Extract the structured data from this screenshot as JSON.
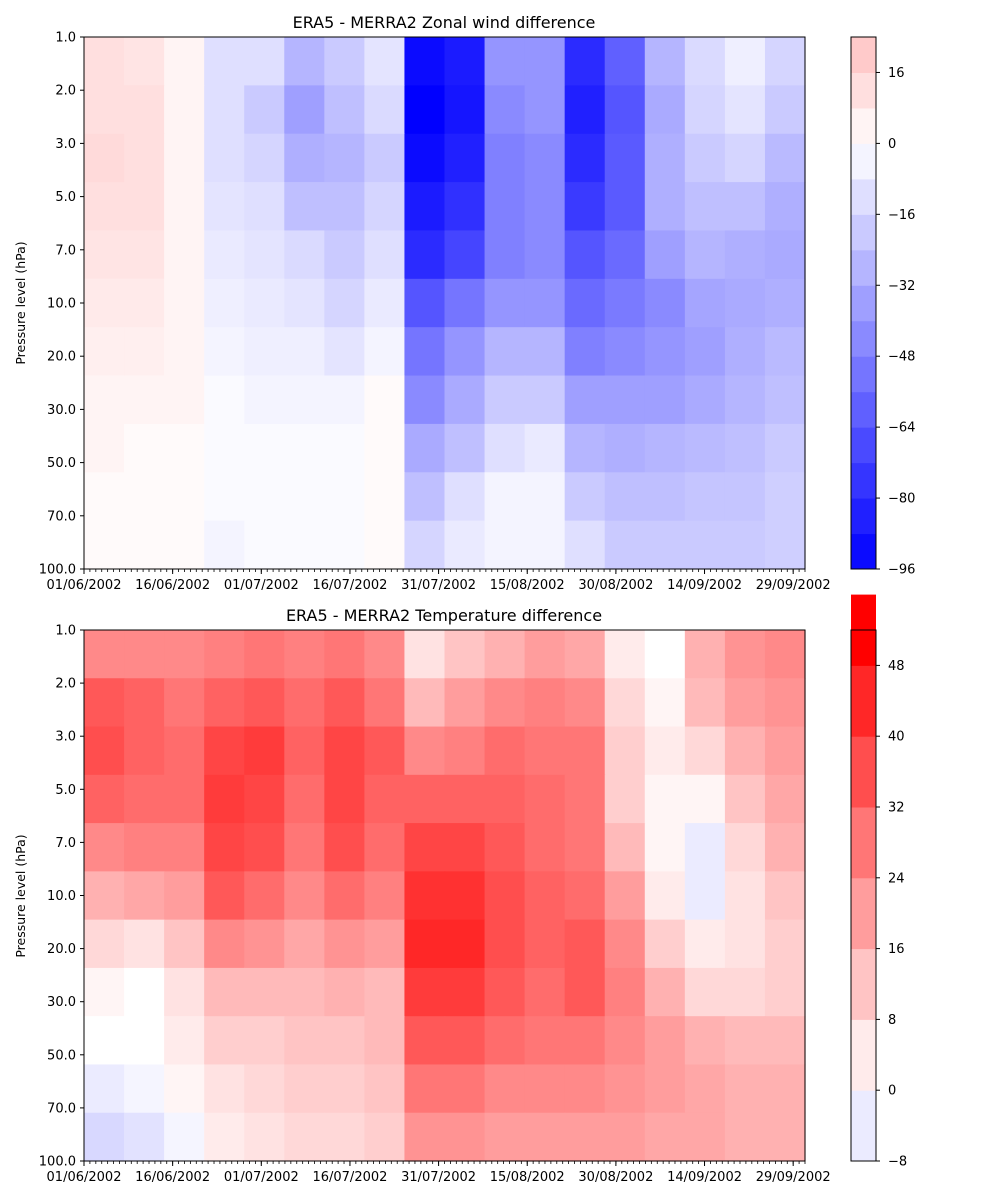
{
  "chart_data": [
    {
      "type": "heatmap",
      "title": "ERA5 - MERRA2 Zonal wind difference",
      "xlabel": "",
      "ylabel": "Pressure level (hPa)",
      "x_tick_labels": [
        "01/06/2002",
        "16/06/2002",
        "01/07/2002",
        "16/07/2002",
        "31/07/2002",
        "15/08/2002",
        "30/08/2002",
        "14/09/2002",
        "29/09/2002"
      ],
      "y_tick_labels": [
        "1.0",
        "2.0",
        "3.0",
        "5.0",
        "7.0",
        "10.0",
        "20.0",
        "30.0",
        "50.0",
        "70.0",
        "100.0"
      ],
      "x_range": [
        "01/06/2002",
        "01/10/2002"
      ],
      "y_range": [
        1.0,
        100.0
      ],
      "color_range": [
        -96,
        24
      ],
      "colorbar_ticks": [
        "16",
        "0",
        "−16",
        "−32",
        "−48",
        "−64",
        "−80",
        "−96"
      ],
      "colorbar_tick_values": [
        16,
        0,
        -16,
        -32,
        -48,
        -64,
        -80,
        -96
      ],
      "colormap": "bwr",
      "color_neg": "#0000ff",
      "color_pos": "#ff0000",
      "grid": false,
      "time_columns": [
        "01/06",
        "08/06",
        "15/06",
        "22/06",
        "29/06",
        "06/07",
        "13/07",
        "20/07",
        "27/07",
        "03/08",
        "10/08",
        "17/08",
        "24/08",
        "31/08",
        "07/09",
        "14/09",
        "21/09",
        "28/09"
      ],
      "pressure_rows": [
        1.0,
        2.0,
        3.0,
        5.0,
        7.0,
        10.0,
        20.0,
        30.0,
        50.0,
        70.0,
        100.0
      ],
      "values": [
        [
          12,
          10,
          4,
          -12,
          -12,
          -28,
          -20,
          -10,
          -92,
          -86,
          -40,
          -40,
          -80,
          -60,
          -28,
          -14,
          -6,
          -16
        ],
        [
          12,
          12,
          4,
          -12,
          -20,
          -36,
          -24,
          -14,
          -96,
          -88,
          -44,
          -40,
          -84,
          -64,
          -32,
          -16,
          -10,
          -20
        ],
        [
          14,
          12,
          4,
          -12,
          -16,
          -30,
          -28,
          -20,
          -92,
          -84,
          -48,
          -44,
          -80,
          -62,
          -30,
          -20,
          -16,
          -26
        ],
        [
          12,
          12,
          4,
          -10,
          -12,
          -24,
          -24,
          -16,
          -86,
          -78,
          -48,
          -44,
          -74,
          -62,
          -30,
          -24,
          -24,
          -30
        ],
        [
          10,
          10,
          4,
          -8,
          -10,
          -14,
          -20,
          -12,
          -80,
          -70,
          -48,
          -44,
          -64,
          -56,
          -36,
          -28,
          -30,
          -32
        ],
        [
          8,
          8,
          4,
          -6,
          -8,
          -10,
          -16,
          -8,
          -64,
          -52,
          -40,
          -40,
          -56,
          -50,
          -44,
          -34,
          -32,
          -30
        ],
        [
          6,
          6,
          4,
          -4,
          -6,
          -6,
          -10,
          -4,
          -52,
          -40,
          -28,
          -28,
          -48,
          -44,
          -40,
          -36,
          -30,
          -26
        ],
        [
          4,
          4,
          4,
          -2,
          -4,
          -4,
          -4,
          2,
          -44,
          -32,
          -20,
          -20,
          -36,
          -36,
          -36,
          -32,
          -28,
          -24
        ],
        [
          4,
          2,
          2,
          -2,
          -2,
          -2,
          -2,
          2,
          -32,
          -24,
          -12,
          -8,
          -28,
          -30,
          -28,
          -26,
          -24,
          -20
        ],
        [
          2,
          2,
          2,
          -2,
          -2,
          -2,
          -2,
          2,
          -24,
          -12,
          -4,
          -4,
          -20,
          -24,
          -24,
          -22,
          -22,
          -18
        ],
        [
          2,
          2,
          2,
          -4,
          -2,
          -2,
          -2,
          2,
          -16,
          -8,
          -4,
          -4,
          -12,
          -20,
          -20,
          -20,
          -20,
          -18
        ]
      ]
    },
    {
      "type": "heatmap",
      "title": "ERA5 - MERRA2 Temperature difference",
      "xlabel": "",
      "ylabel": "Pressure level (hPa)",
      "x_tick_labels": [
        "01/06/2002",
        "16/06/2002",
        "01/07/2002",
        "16/07/2002",
        "31/07/2002",
        "15/08/2002",
        "30/08/2002",
        "14/09/2002",
        "29/09/2002"
      ],
      "y_tick_labels": [
        "1.0",
        "2.0",
        "3.0",
        "5.0",
        "7.0",
        "10.0",
        "20.0",
        "30.0",
        "50.0",
        "70.0",
        "100.0"
      ],
      "x_range": [
        "01/06/2002",
        "01/10/2002"
      ],
      "y_range": [
        1.0,
        100.0
      ],
      "color_range": [
        -8,
        52
      ],
      "colorbar_ticks": [
        "48",
        "40",
        "32",
        "24",
        "16",
        "8",
        "0",
        "−8"
      ],
      "colorbar_tick_values": [
        48,
        40,
        32,
        24,
        16,
        8,
        0,
        -8
      ],
      "colormap": "bwr",
      "color_neg": "#0000ff",
      "color_pos": "#ff0000",
      "grid": false,
      "time_columns": [
        "01/06",
        "08/06",
        "15/06",
        "22/06",
        "29/06",
        "06/07",
        "13/07",
        "20/07",
        "27/07",
        "03/08",
        "10/08",
        "17/08",
        "24/08",
        "31/08",
        "07/09",
        "14/09",
        "21/09",
        "28/09"
      ],
      "pressure_rows": [
        1.0,
        2.0,
        3.0,
        5.0,
        7.0,
        10.0,
        20.0,
        30.0,
        50.0,
        70.0,
        100.0
      ],
      "values": [
        [
          24,
          24,
          24,
          26,
          28,
          26,
          28,
          24,
          6,
          12,
          16,
          20,
          18,
          4,
          0,
          16,
          22,
          24
        ],
        [
          34,
          32,
          28,
          32,
          34,
          30,
          34,
          28,
          14,
          20,
          24,
          26,
          24,
          8,
          2,
          14,
          20,
          22
        ],
        [
          36,
          32,
          30,
          38,
          40,
          32,
          38,
          34,
          24,
          26,
          30,
          28,
          28,
          10,
          4,
          8,
          16,
          20
        ],
        [
          32,
          30,
          30,
          40,
          38,
          30,
          38,
          32,
          32,
          32,
          32,
          30,
          28,
          10,
          2,
          2,
          12,
          18
        ],
        [
          24,
          26,
          26,
          38,
          36,
          28,
          36,
          30,
          38,
          38,
          34,
          30,
          28,
          14,
          2,
          -4,
          8,
          16
        ],
        [
          16,
          18,
          20,
          34,
          30,
          24,
          30,
          26,
          42,
          42,
          36,
          32,
          30,
          20,
          4,
          -4,
          6,
          12
        ],
        [
          8,
          6,
          12,
          24,
          22,
          18,
          22,
          20,
          44,
          44,
          36,
          32,
          34,
          24,
          10,
          4,
          6,
          10
        ],
        [
          2,
          0,
          6,
          14,
          14,
          14,
          16,
          14,
          40,
          40,
          34,
          30,
          34,
          26,
          16,
          8,
          8,
          10
        ],
        [
          0,
          0,
          4,
          10,
          10,
          12,
          12,
          14,
          34,
          34,
          30,
          28,
          28,
          24,
          20,
          16,
          14,
          14
        ],
        [
          -4,
          -2,
          2,
          6,
          8,
          10,
          10,
          12,
          28,
          28,
          24,
          24,
          24,
          22,
          20,
          18,
          16,
          16
        ],
        [
          -8,
          -6,
          -2,
          4,
          6,
          8,
          8,
          10,
          22,
          22,
          20,
          20,
          20,
          20,
          18,
          18,
          16,
          16
        ]
      ]
    }
  ]
}
